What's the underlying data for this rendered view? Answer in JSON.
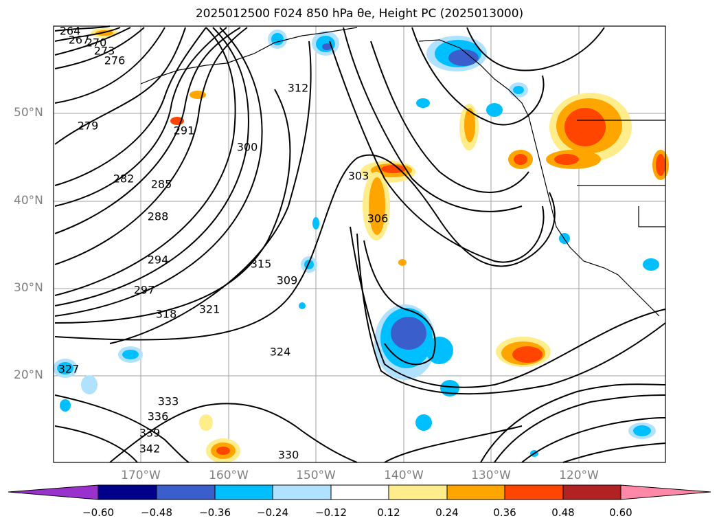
{
  "title": "2025012500 F024 850 hPa θe, Height PC (2025013000)",
  "map": {
    "lat_labels": [
      "50°N",
      "40°N",
      "30°N",
      "20°N"
    ],
    "lon_labels": [
      "170°W",
      "160°W",
      "150°W",
      "140°W",
      "130°W",
      "120°W"
    ],
    "theta_e_contour_labels": [
      "264",
      "267",
      "270",
      "273",
      "276",
      "279",
      "282",
      "285",
      "288",
      "291",
      "294",
      "297",
      "300",
      "303",
      "306",
      "309",
      "312",
      "315",
      "318",
      "321",
      "324",
      "327",
      "330",
      "333",
      "336",
      "339",
      "342"
    ]
  },
  "colorbar": {
    "ticks": [
      "−0.60",
      "−0.48",
      "−0.36",
      "−0.24",
      "−0.12",
      "0.12",
      "0.24",
      "0.36",
      "0.48",
      "0.60"
    ],
    "colors": [
      "#9932CC",
      "#00008B",
      "#3A5FCD",
      "#00BFFF",
      "#B0E2FF",
      "#FFFFFF",
      "#FFEC8B",
      "#FFA500",
      "#FF4500",
      "#B22222",
      "#FF88A8"
    ]
  }
}
